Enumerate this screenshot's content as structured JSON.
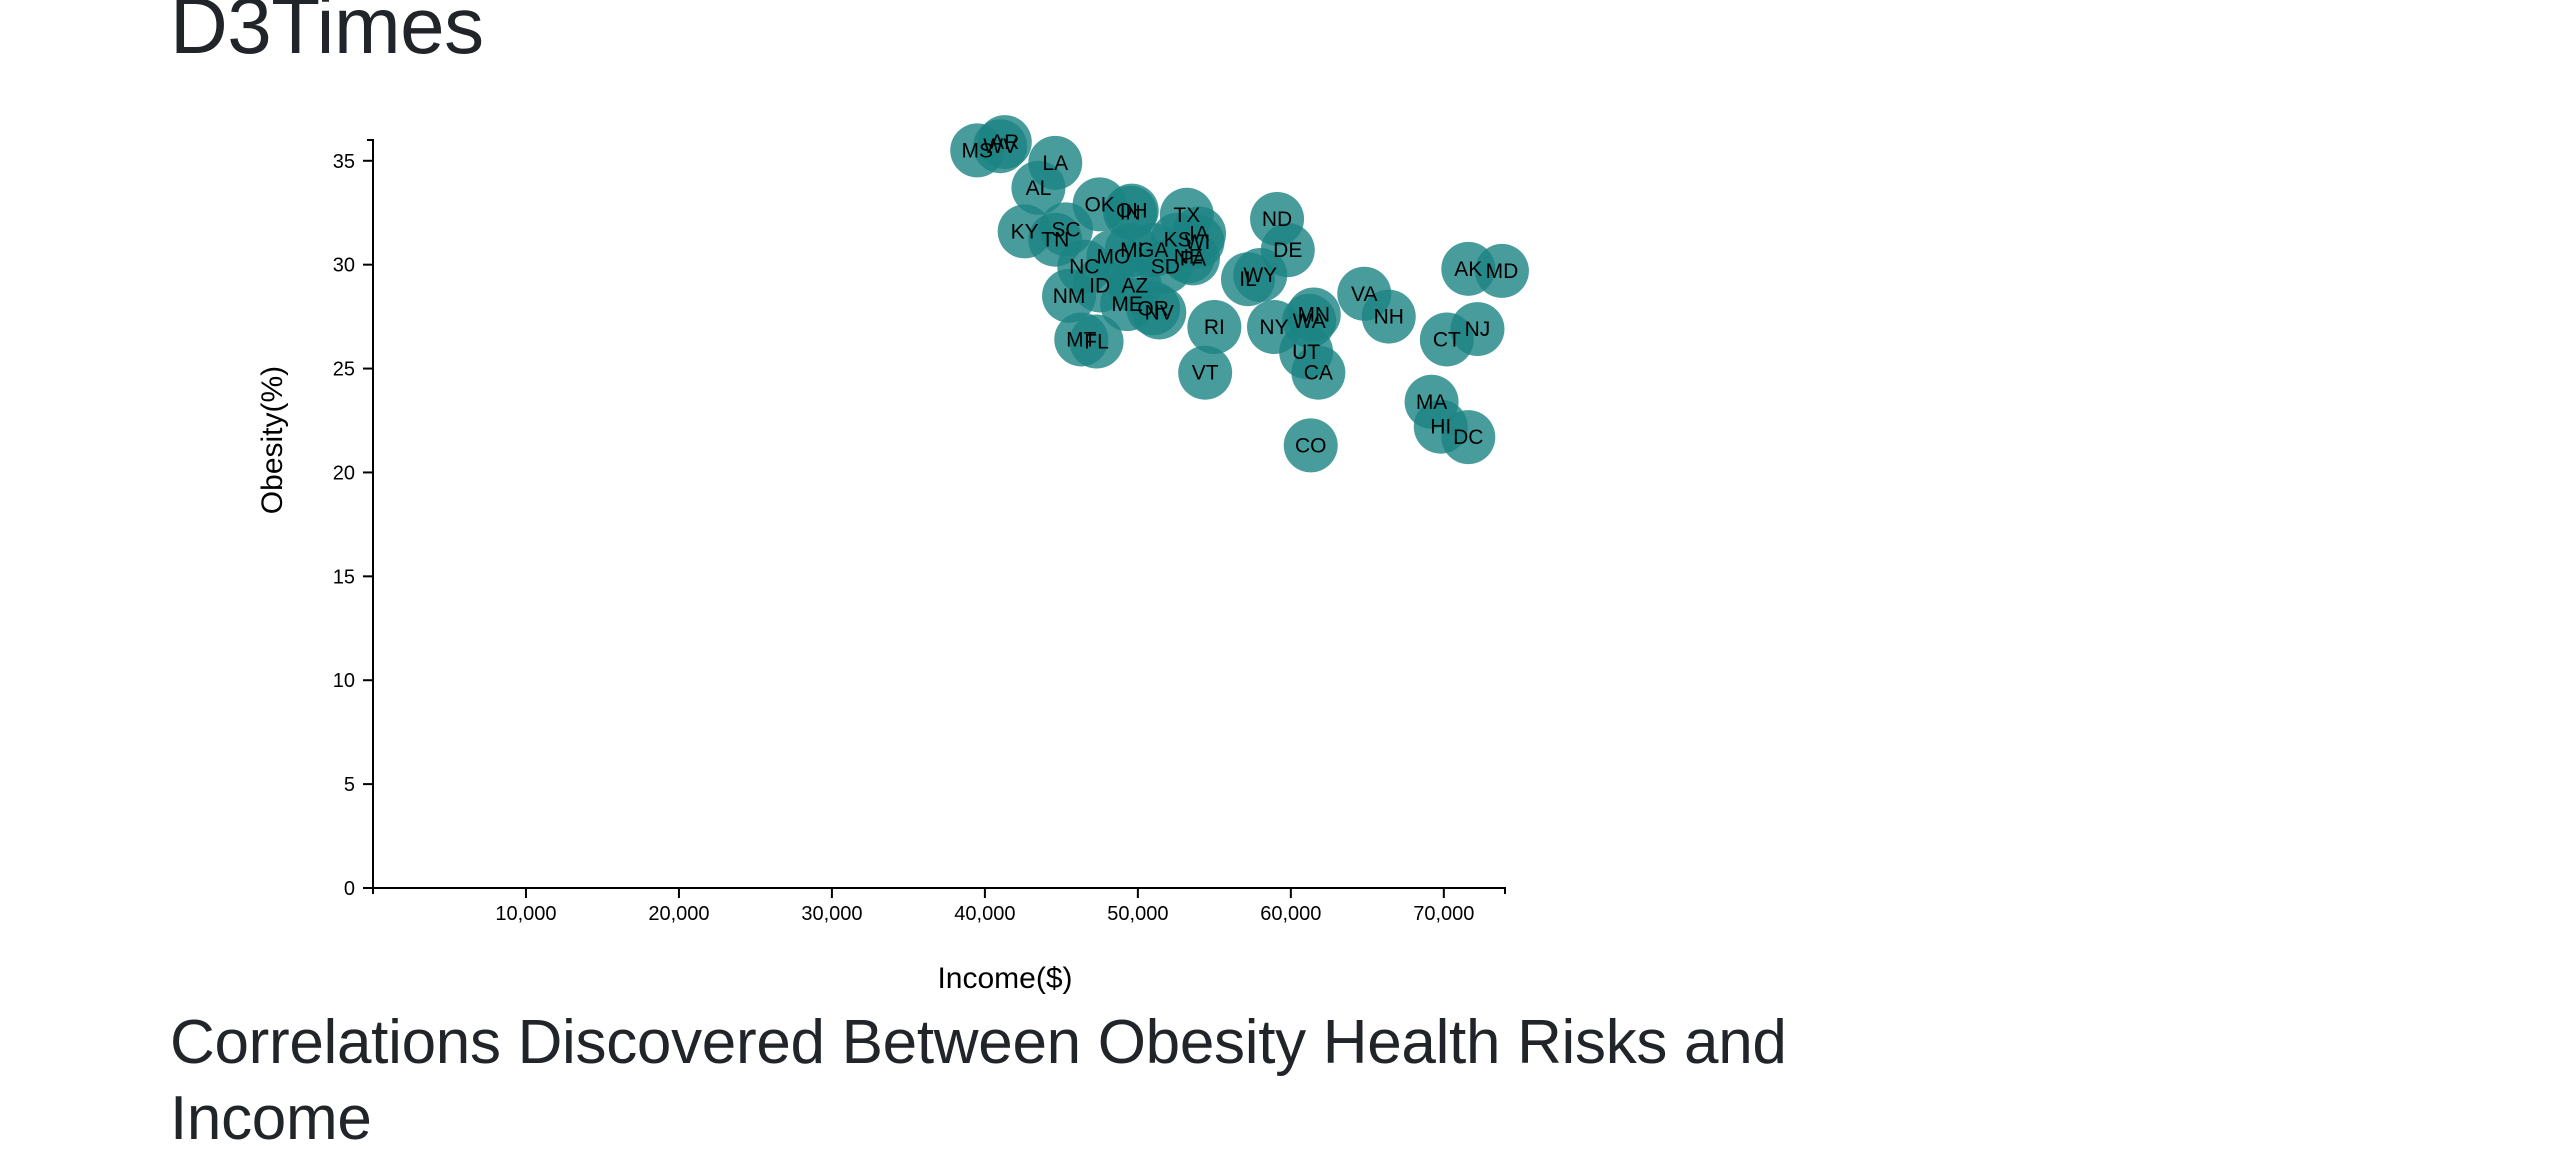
{
  "header": {
    "title": "D3Times"
  },
  "article": {
    "title": "Correlations Discovered Between Obesity Health Risks and Income"
  },
  "chart_data": {
    "type": "scatter",
    "xlabel": "Income($)",
    "ylabel": "Obesity(%)",
    "xlim": [
      0,
      74000
    ],
    "ylim": [
      0,
      36
    ],
    "xticks": [
      10000,
      20000,
      30000,
      40000,
      50000,
      60000,
      70000
    ],
    "xtick_labels": [
      "10,000",
      "20,000",
      "30,000",
      "40,000",
      "50,000",
      "60,000",
      "70,000"
    ],
    "yticks": [
      0,
      5,
      10,
      15,
      20,
      25,
      30,
      35
    ],
    "ytick_labels": [
      "0",
      "5",
      "10",
      "15",
      "20",
      "25",
      "30",
      "35"
    ],
    "grid": false,
    "marker_color": "#1b8383",
    "points": [
      {
        "label": "MS",
        "x": 39500,
        "y": 35.5
      },
      {
        "label": "WV",
        "x": 41000,
        "y": 35.7
      },
      {
        "label": "AR",
        "x": 41300,
        "y": 35.9
      },
      {
        "label": "LA",
        "x": 44600,
        "y": 34.9
      },
      {
        "label": "AL",
        "x": 43500,
        "y": 33.7
      },
      {
        "label": "OK",
        "x": 47500,
        "y": 32.9
      },
      {
        "label": "OH",
        "x": 49600,
        "y": 32.6
      },
      {
        "label": "IN",
        "x": 49500,
        "y": 32.5
      },
      {
        "label": "SC",
        "x": 45300,
        "y": 31.7
      },
      {
        "label": "TX",
        "x": 53200,
        "y": 32.4
      },
      {
        "label": "KS",
        "x": 52600,
        "y": 31.2
      },
      {
        "label": "GA",
        "x": 51000,
        "y": 30.7
      },
      {
        "label": "IA",
        "x": 54000,
        "y": 31.5
      },
      {
        "label": "KY",
        "x": 42600,
        "y": 31.6
      },
      {
        "label": "TN",
        "x": 44600,
        "y": 31.2
      },
      {
        "label": "MI",
        "x": 49600,
        "y": 30.7
      },
      {
        "label": "MO",
        "x": 48400,
        "y": 30.4
      },
      {
        "label": "SD",
        "x": 51800,
        "y": 29.9
      },
      {
        "label": "NE",
        "x": 53300,
        "y": 30.4
      },
      {
        "label": "PA",
        "x": 53600,
        "y": 30.3
      },
      {
        "label": "NC",
        "x": 46500,
        "y": 29.9
      },
      {
        "label": "WI",
        "x": 53900,
        "y": 31.1
      },
      {
        "label": "ND",
        "x": 59100,
        "y": 32.2
      },
      {
        "label": "DE",
        "x": 59800,
        "y": 30.7
      },
      {
        "label": "IL",
        "x": 57200,
        "y": 29.3
      },
      {
        "label": "WY",
        "x": 58000,
        "y": 29.5
      },
      {
        "label": "ID",
        "x": 47500,
        "y": 29.0
      },
      {
        "label": "AZ",
        "x": 49800,
        "y": 29.0
      },
      {
        "label": "NM",
        "x": 45500,
        "y": 28.5
      },
      {
        "label": "ME",
        "x": 49300,
        "y": 28.1
      },
      {
        "label": "OR",
        "x": 51000,
        "y": 27.9
      },
      {
        "label": "NV",
        "x": 51400,
        "y": 27.7
      },
      {
        "label": "RI",
        "x": 55000,
        "y": 27.0
      },
      {
        "label": "NY",
        "x": 58900,
        "y": 27.0
      },
      {
        "label": "MN",
        "x": 61500,
        "y": 27.6
      },
      {
        "label": "WA",
        "x": 61200,
        "y": 27.3
      },
      {
        "label": "VA",
        "x": 64800,
        "y": 28.6
      },
      {
        "label": "NH",
        "x": 66400,
        "y": 27.5
      },
      {
        "label": "MT",
        "x": 46300,
        "y": 26.4
      },
      {
        "label": "FL",
        "x": 47300,
        "y": 26.3
      },
      {
        "label": "UT",
        "x": 61000,
        "y": 25.8
      },
      {
        "label": "CA",
        "x": 61800,
        "y": 24.8
      },
      {
        "label": "VT",
        "x": 54400,
        "y": 24.8
      },
      {
        "label": "CT",
        "x": 70200,
        "y": 26.4
      },
      {
        "label": "NJ",
        "x": 72200,
        "y": 26.9
      },
      {
        "label": "AK",
        "x": 71600,
        "y": 29.8
      },
      {
        "label": "MD",
        "x": 73800,
        "y": 29.7
      },
      {
        "label": "MA",
        "x": 69200,
        "y": 23.4
      },
      {
        "label": "HI",
        "x": 69800,
        "y": 22.2
      },
      {
        "label": "DC",
        "x": 71600,
        "y": 21.7
      },
      {
        "label": "CO",
        "x": 61300,
        "y": 21.3
      }
    ]
  }
}
